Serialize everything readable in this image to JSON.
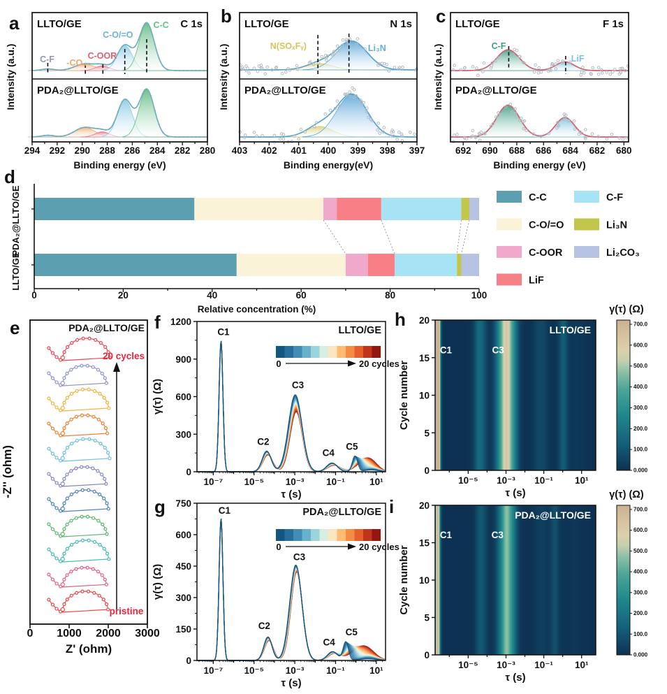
{
  "figure": {
    "description": "XPS, EIS and DRT multi-panel figure comparing LLTO/GE and PDA₂@LLTO/GE"
  },
  "colormaps": {
    "heat_max": 720,
    "heat": [
      [
        0,
        "#0d3152"
      ],
      [
        0.18,
        "#14607a"
      ],
      [
        0.38,
        "#218a8c"
      ],
      [
        0.54,
        "#4da596"
      ],
      [
        0.65,
        "#8abfa6"
      ],
      [
        0.73,
        "#c4cfb0"
      ],
      [
        0.8,
        "#dcd0ac"
      ],
      [
        0.9,
        "#d5c1a0"
      ],
      [
        1,
        "#cbb192"
      ]
    ],
    "line": [
      [
        0,
        "#155581"
      ],
      [
        0.1,
        "#2a6f9e"
      ],
      [
        0.2,
        "#4792bb"
      ],
      [
        0.3,
        "#74bcd3"
      ],
      [
        0.38,
        "#a5dade"
      ],
      [
        0.46,
        "#dcefe0"
      ],
      [
        0.52,
        "#f9f0d8"
      ],
      [
        0.58,
        "#fcd9a2"
      ],
      [
        0.66,
        "#fcb061"
      ],
      [
        0.75,
        "#f4803a"
      ],
      [
        0.84,
        "#e05527"
      ],
      [
        0.92,
        "#bc2f1a"
      ],
      [
        1,
        "#93170f"
      ]
    ]
  },
  "chart_data": [
    {
      "letter": "a",
      "type": "xps",
      "corner": "C 1s",
      "xlabel": "Binding energy (eV)",
      "ylabel": "Intensity (a.u.)",
      "xticks": [
        294,
        292,
        290,
        288,
        286,
        284,
        282,
        280
      ],
      "xrange": [
        294,
        280
      ],
      "minor_step": 1,
      "envelope_color": "#74aebc",
      "marker": "dots",
      "subplots": [
        {
          "title": "LLTO/GE"
        },
        {
          "title": "PDA₂@LLTO/GE"
        }
      ],
      "components": [
        {
          "label": "C-F",
          "center_eV": 292.75,
          "sigma_eV": 0.5,
          "amp": [
            0.035,
            0.035
          ],
          "color": "#aab3cf",
          "label_color": "#8f93c4"
        },
        {
          "label": "-CO₃",
          "center_eV": 289.8,
          "sigma_eV": 0.8,
          "amp": [
            0.14,
            0.2
          ],
          "color": "#f2ad72",
          "label_color": "#f0a96c"
        },
        {
          "label": "C-OOR",
          "center_eV": 288.4,
          "sigma_eV": 0.55,
          "amp": [
            0.1,
            0.11
          ],
          "color": "#ec7285",
          "label_color": "#e45f72"
        },
        {
          "label": "C-O/=O",
          "center_eV": 286.6,
          "sigma_eV": 0.6,
          "amp": [
            0.53,
            0.78
          ],
          "color": "#8fcbe6",
          "label_color": "#6db4da"
        },
        {
          "label": "C-C",
          "center_eV": 284.85,
          "sigma_eV": 0.6,
          "amp": [
            1.0,
            1.0
          ],
          "color": "#62bb82",
          "label_color": "#66c184"
        }
      ],
      "label_pos": [
        {
          "v": 292.8,
          "y": 89
        },
        {
          "v": 290.45,
          "y": 94
        },
        {
          "v": 288.4,
          "y": 84
        },
        {
          "v": 287.15,
          "y": 54
        },
        {
          "v": 283.7,
          "y": 40
        }
      ],
      "guides": [
        {
          "v": 292.75,
          "y0": 90,
          "y1": 106
        },
        {
          "v": 289.75,
          "y0": 92,
          "y1": 106
        },
        {
          "v": 288.35,
          "y0": 92,
          "y1": 106
        },
        {
          "v": 286.6,
          "y0": 70,
          "y1": 106
        },
        {
          "v": 284.85,
          "y0": 56,
          "y1": 106
        }
      ]
    },
    {
      "letter": "b",
      "type": "xps",
      "corner": "N 1s",
      "xlabel": "Binding energy(eV)",
      "ylabel": "Intensity (a.u.)",
      "xticks": [
        403,
        402,
        401,
        400,
        399,
        398,
        397
      ],
      "xrange": [
        403,
        397
      ],
      "minor_step": 0.5,
      "envelope_color": "#58a3d2",
      "marker": "scatter",
      "subplots": [
        {
          "title": "LLTO/GE"
        },
        {
          "title": "PDA₂@LLTO/GE"
        }
      ],
      "components": [
        {
          "label": "N(SOₓFᵧ)",
          "center_eV": 400.3,
          "sigma_eV": 0.45,
          "amp": [
            0.14,
            0.23
          ],
          "color": "#ddd27a",
          "label_color": "#d3c65e"
        },
        {
          "label": "Li₃N",
          "center_eV": 399.2,
          "sigma_eV": 0.52,
          "amp": [
            0.62,
            0.92
          ],
          "color": "#5ba7d8",
          "label_color": "#64aede"
        }
      ],
      "label_pos": [
        {
          "v": 401.35,
          "y": 70
        },
        {
          "v": 398.35,
          "y": 73
        }
      ],
      "guides": [
        {
          "v": 400.35,
          "y0": 50,
          "y1": 106
        },
        {
          "v": 399.3,
          "y0": 48,
          "y1": 106
        }
      ]
    },
    {
      "letter": "c",
      "type": "xps",
      "corner": "F 1s",
      "xlabel": "Binding energy (eV)",
      "ylabel": "Intensity (a.u.)",
      "xticks": [
        692,
        690,
        688,
        686,
        684,
        682,
        680
      ],
      "xrange": [
        692.95,
        679.65
      ],
      "minor_step": 1,
      "envelope_color": "#d45f6e",
      "marker": "scatter",
      "subplots": [
        {
          "title": "LLTO/GE"
        },
        {
          "title": "PDA₂@LLTO/GE"
        }
      ],
      "components": [
        {
          "label": "C-F",
          "center_eV": 688.65,
          "sigma_eV": 0.85,
          "amp": [
            0.62,
            0.95
          ],
          "color": "#3f9e85",
          "label_color": "#3f9e85"
        },
        {
          "label": "LiF",
          "center_eV": 684.4,
          "sigma_eV": 0.7,
          "amp": [
            0.26,
            0.58
          ],
          "color": "#79c4e0",
          "label_color": "#79c4e2"
        }
      ],
      "label_pos": [
        {
          "v": 689.35,
          "y": 70
        },
        {
          "v": 683.45,
          "y": 88
        }
      ],
      "guides": [
        {
          "v": 688.6,
          "y0": 66,
          "y1": 100
        },
        {
          "v": 684.35,
          "y0": 80,
          "y1": 106
        }
      ]
    },
    {
      "letter": "d",
      "type": "stacked_bar",
      "xlabel": "Relative concentration (%)",
      "xticks": [
        0,
        20,
        40,
        60,
        80,
        100
      ],
      "xlim": [
        0,
        100
      ],
      "categories": [
        "PDA₂@LLTO/GE",
        "LLTO/GE"
      ],
      "series": [
        {
          "name": "C-C",
          "color": "#5b9fb0",
          "values": [
            36,
            45.5
          ]
        },
        {
          "name": "C-O/=O",
          "color": "#faf3d8",
          "values": [
            29,
            24.5
          ]
        },
        {
          "name": "C-OOR",
          "color": "#f0a9cb",
          "values": [
            3,
            5
          ]
        },
        {
          "name": "LiF",
          "color": "#f97f87",
          "values": [
            10,
            6
          ]
        },
        {
          "name": "C-F",
          "color": "#a6e3f5",
          "values": [
            18,
            14
          ]
        },
        {
          "name": "Li₃N",
          "color": "#c2c64b",
          "values": [
            1.8,
            1
          ]
        },
        {
          "name": "Li₂CO₃",
          "color": "#b7c3e3",
          "values": [
            2.2,
            4
          ]
        }
      ],
      "legend_columns": [
        [
          "C-C",
          "C-O/=O",
          "C-OOR",
          "LiF"
        ],
        [
          "C-F",
          "Li₃N",
          "Li₂CO₃"
        ]
      ],
      "connectors_after": [
        "C-O/=O",
        "LiF",
        "C-F",
        "Li₃N"
      ]
    },
    {
      "letter": "e",
      "type": "nyquist",
      "title": "PDA₂@LLTO/GE",
      "xlabel": "Z' (ohm)",
      "ylabel": "-Z'' (ohm)",
      "xticks": [
        0,
        1000,
        2000,
        3000
      ],
      "xlim": [
        0,
        3000
      ],
      "annotation_top": "20 cycles",
      "annotation_bottom": "pristine",
      "annotation_color": "#e8273d",
      "curves": [
        {
          "color": "#ef4649",
          "start": 480,
          "valley": 830,
          "end": 2000,
          "h": 30
        },
        {
          "color": "#e85f86",
          "start": 480,
          "valley": 830,
          "end": 1960,
          "h": 28
        },
        {
          "color": "#45bdb3",
          "start": 480,
          "valley": 830,
          "end": 2020,
          "h": 31
        },
        {
          "color": "#5cb96e",
          "start": 480,
          "valley": 830,
          "end": 1970,
          "h": 29
        },
        {
          "color": "#4d82c2",
          "start": 480,
          "valley": 830,
          "end": 2010,
          "h": 31
        },
        {
          "color": "#8487c6",
          "start": 480,
          "valley": 830,
          "end": 1950,
          "h": 28
        },
        {
          "color": "#6fc0e4",
          "start": 480,
          "valley": 830,
          "end": 2040,
          "h": 32
        },
        {
          "color": "#f08030",
          "start": 480,
          "valley": 830,
          "end": 1980,
          "h": 30
        },
        {
          "color": "#f3b33f",
          "start": 480,
          "valley": 830,
          "end": 2020,
          "h": 31
        },
        {
          "color": "#9094d2",
          "start": 480,
          "valley": 830,
          "end": 1960,
          "h": 29
        },
        {
          "color": "#ef4653",
          "start": 480,
          "valley": 830,
          "end": 2050,
          "h": 32
        }
      ]
    },
    {
      "letter": "f",
      "type": "drt",
      "title": "LLTO/GE",
      "xlabel": "τ (s)",
      "ylabel": "γ(τ) (Ω)",
      "yticks": [
        0,
        300,
        600,
        900,
        1200
      ],
      "ylim": [
        0,
        1200
      ],
      "xtick_logs": [
        -7,
        -5,
        -3,
        -1,
        1
      ],
      "xtick_labels": [
        "10⁻⁷",
        "10⁻⁵",
        "10⁻³",
        "10⁻¹",
        "10¹"
      ],
      "xlog_range": [
        -7.8,
        1.45
      ],
      "n_cycles": 21,
      "legend": {
        "from": "0",
        "to": "20 cycles"
      },
      "peaks": [
        {
          "id": "C1",
          "lc": -6.62,
          "s": 0.095,
          "a": 1050,
          "da": 0.02,
          "dc": 0,
          "ds": 0
        },
        {
          "id": "C2",
          "lc": -4.38,
          "s": 0.22,
          "a": 165,
          "da": 0.18,
          "dc": 0.06,
          "ds": 0.02
        },
        {
          "id": "C3",
          "lc": -2.98,
          "s": 0.33,
          "a": 615,
          "da": 0.22,
          "dc": 0.05,
          "ds": -0.03
        },
        {
          "id": "C4",
          "lc": -1.18,
          "s": 0.26,
          "a": 70,
          "da": 0.25,
          "dc": 0.1,
          "ds": 0.05
        },
        {
          "id": "C5",
          "lc": -0.05,
          "s": 0.13,
          "a": 125,
          "da": 0.45,
          "dc": 0.45,
          "ds": 0.27
        }
      ],
      "tail": {
        "lc": 0.75,
        "s": 0.35,
        "a0": 15,
        "a1": 55
      },
      "annotations": [
        {
          "text": "C1",
          "lt": -6.5,
          "v": 1090
        },
        {
          "text": "C2",
          "lt": -4.55,
          "v": 215
        },
        {
          "text": "C3",
          "lt": -2.85,
          "v": 668
        },
        {
          "text": "C4",
          "lt": -1.35,
          "v": 125
        },
        {
          "text": "C5",
          "lt": -0.2,
          "v": 175
        }
      ]
    },
    {
      "letter": "g",
      "type": "drt",
      "title": "PDA₂@LLTO/GE",
      "xlabel": "τ (s)",
      "ylabel": "γ(τ) (Ω)",
      "yticks": [
        0,
        150,
        300,
        450,
        600,
        750
      ],
      "ylim": [
        0,
        750
      ],
      "xtick_logs": [
        -7,
        -5,
        -3,
        -1,
        1
      ],
      "xtick_labels": [
        "10⁻⁷",
        "10⁻⁵",
        "10⁻³",
        "10⁻¹",
        "10¹"
      ],
      "xlog_range": [
        -7.8,
        1.45
      ],
      "n_cycles": 21,
      "legend": {
        "from": "0",
        "to": "20 cycles"
      },
      "peaks": [
        {
          "id": "C1",
          "lc": -6.62,
          "s": 0.095,
          "a": 680,
          "da": 0.02,
          "dc": 0,
          "ds": 0
        },
        {
          "id": "C2",
          "lc": -4.32,
          "s": 0.2,
          "a": 112,
          "da": 0.15,
          "dc": 0.05,
          "ds": 0.02
        },
        {
          "id": "C3",
          "lc": -2.95,
          "s": 0.3,
          "a": 455,
          "da": 0.07,
          "dc": 0.04,
          "ds": -0.02
        },
        {
          "id": "C4",
          "lc": -1.15,
          "s": 0.25,
          "a": 42,
          "da": 0.2,
          "dc": 0.1,
          "ds": 0.05
        },
        {
          "id": "C5",
          "lc": -0.5,
          "s": 0.13,
          "a": 88,
          "da": 0.5,
          "dc": 0.6,
          "ds": 0.3
        }
      ],
      "tail": {
        "lc": 0.6,
        "s": 0.4,
        "a0": 8,
        "a1": 40
      },
      "annotations": [
        {
          "text": "C1",
          "lt": -6.45,
          "v": 700
        },
        {
          "text": "C2",
          "lt": -4.5,
          "v": 150
        },
        {
          "text": "C3",
          "lt": -2.78,
          "v": 478
        },
        {
          "text": "C4",
          "lt": -1.32,
          "v": 72
        },
        {
          "text": "C5",
          "lt": -0.22,
          "v": 120
        }
      ]
    },
    {
      "letter": "h",
      "type": "heatmap",
      "title": "LLTO/GE",
      "xlabel": "τ (s)",
      "ylabel": "Cycle number",
      "yticks": [
        0,
        5,
        10,
        15,
        20
      ],
      "ylim": [
        0,
        20
      ],
      "xtick_logs": [
        -5,
        -3,
        -1,
        1
      ],
      "xtick_labels": [
        "10⁻⁵",
        "10⁻³",
        "10⁻¹",
        "10¹"
      ],
      "xlog_range": [
        -6.75,
        1.75
      ],
      "source": 5,
      "colorbar": {
        "title": "γ(τ) (Ω)",
        "ticks": [
          "700.0",
          "600.0",
          "500.0",
          "400.0",
          "300.0",
          "200.0",
          "100.0",
          "0.000"
        ],
        "max": 720
      },
      "annotations": [
        {
          "text": "C1",
          "lt": -6.18,
          "cy": 15.6
        },
        {
          "text": "C3",
          "lt": -3.42,
          "cy": 15.6
        }
      ]
    },
    {
      "letter": "i",
      "type": "heatmap",
      "title": "PDA₂@LLTO/GE",
      "xlabel": "τ (s)",
      "ylabel": "Cycle number",
      "yticks": [
        0,
        5,
        10,
        15,
        20
      ],
      "ylim": [
        0,
        20
      ],
      "xtick_logs": [
        -5,
        -3,
        -1,
        1
      ],
      "xtick_labels": [
        "10⁻⁵",
        "10⁻³",
        "10⁻¹",
        "10¹"
      ],
      "xlog_range": [
        -6.75,
        1.75
      ],
      "source": 6,
      "colorbar": {
        "title": "γ(τ) (Ω)",
        "ticks": [
          "700.0",
          "600.0",
          "500.0",
          "400.0",
          "300.0",
          "200.0",
          "100.0",
          "0.000"
        ],
        "max": 720
      },
      "annotations": [
        {
          "text": "C1",
          "lt": -6.18,
          "cy": 15.6
        },
        {
          "text": "C3",
          "lt": -3.45,
          "cy": 15.6
        }
      ]
    }
  ]
}
